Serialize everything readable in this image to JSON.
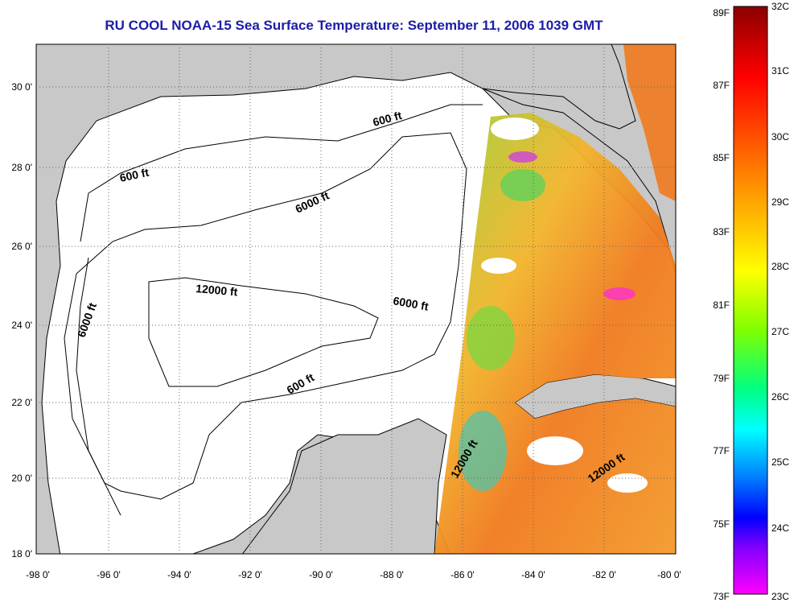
{
  "title": "RU COOL  NOAA-15  Sea Surface Temperature:  September 11, 2006 1039 GMT",
  "lon_ticks": [
    "-98 0'",
    "-96 0'",
    "-94 0'",
    "-92 0'",
    "-90 0'",
    "-88 0'",
    "-86 0'",
    "-84 0'",
    "-82 0'",
    "-80 0'"
  ],
  "lat_ticks": [
    "30 0'",
    "28 0'",
    "26 0'",
    "24 0'",
    "22 0'",
    "20 0'",
    "18 0'"
  ],
  "contour_labels": [
    "600 ft",
    "600 ft",
    "600 ft",
    "6000 ft",
    "6000 ft",
    "6000 ft",
    "12000 ft",
    "12000 ft",
    "12000 ft"
  ],
  "colorbar": {
    "fahrenheit": [
      "89F",
      "87F",
      "85F",
      "83F",
      "81F",
      "79F",
      "77F",
      "75F",
      "73F"
    ],
    "celsius": [
      "32C",
      "31C",
      "30C",
      "29C",
      "28C",
      "27C",
      "26C",
      "25C",
      "24C",
      "23C"
    ],
    "colors": [
      "#8b0000",
      "#ff0000",
      "#ff8c00",
      "#ffff00",
      "#80ff00",
      "#00ff80",
      "#00ffff",
      "#0080ff",
      "#0000ff",
      "#8000ff",
      "#ff00ff"
    ]
  },
  "colors": {
    "land": "#c8c8c8",
    "water": "#ffffff",
    "title": "#1c1ca8"
  }
}
